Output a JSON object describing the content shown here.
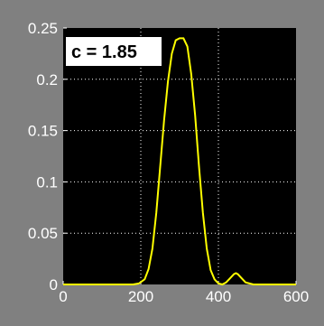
{
  "annotation": "c = 1.85",
  "colors": {
    "figure_background": "#808080",
    "axes_background": "#000000",
    "line": "#ffff00",
    "grid": "#ffffff",
    "tick_text": "#ffffff",
    "annotation_box": "#ffffff",
    "annotation_text": "#000000"
  },
  "chart_data": {
    "type": "line",
    "xlim": [
      0,
      600
    ],
    "ylim": [
      0,
      0.25
    ],
    "xticks": [
      0,
      200,
      400,
      600
    ],
    "yticks": [
      0,
      0.05,
      0.1,
      0.15,
      0.2,
      0.25
    ],
    "xtick_labels": [
      "0",
      "200",
      "400",
      "600"
    ],
    "ytick_labels": [
      "0",
      "0.05",
      "0.1",
      "0.15",
      "0.2",
      "0.25"
    ],
    "grid": true,
    "series": [
      {
        "x": [
          0,
          180,
          195,
          210,
          220,
          230,
          240,
          250,
          260,
          270,
          280,
          290,
          300,
          310,
          320,
          330,
          340,
          350,
          360,
          370,
          380,
          390,
          400,
          410,
          420,
          430,
          440,
          445,
          450,
          460,
          470,
          480,
          490,
          500,
          600
        ],
        "y": [
          0,
          0,
          0.001,
          0.005,
          0.015,
          0.035,
          0.07,
          0.115,
          0.16,
          0.198,
          0.225,
          0.238,
          0.24,
          0.24,
          0.232,
          0.205,
          0.165,
          0.115,
          0.07,
          0.035,
          0.014,
          0.005,
          0.001,
          0,
          0.002,
          0.006,
          0.01,
          0.011,
          0.01,
          0.006,
          0.002,
          0.001,
          0,
          0,
          0
        ]
      }
    ]
  }
}
